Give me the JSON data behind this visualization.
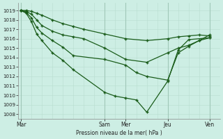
{
  "xlabel": "Pression niveau de la mer( hPa )",
  "bg_color": "#cdeee4",
  "line_color": "#1a5c1a",
  "grid_minor_color": "#b8ddd0",
  "grid_major_color": "#a0c8b8",
  "ylim": [
    1007.5,
    1019.8
  ],
  "yticks": [
    1008,
    1009,
    1010,
    1011,
    1012,
    1013,
    1014,
    1015,
    1016,
    1017,
    1018,
    1019
  ],
  "day_labels": [
    "Mar",
    "Sam",
    "Mer",
    "Jeu",
    "Ven"
  ],
  "day_x": [
    0,
    16,
    20,
    28,
    36
  ],
  "xlim": [
    -0.5,
    38
  ],
  "series_x": [
    [
      0,
      1,
      2,
      3,
      4,
      6,
      8,
      10,
      12,
      16,
      20,
      24,
      28,
      30,
      32,
      34,
      36
    ],
    [
      0,
      1,
      2,
      3,
      4,
      6,
      8,
      10,
      12,
      16,
      20,
      24,
      28,
      30,
      32,
      34,
      36
    ],
    [
      0,
      1,
      2,
      3,
      4,
      6,
      8,
      10,
      16,
      20,
      22,
      24,
      28,
      30,
      32,
      34,
      36
    ],
    [
      0,
      1,
      2,
      3,
      4,
      6,
      8,
      10,
      16,
      18,
      20,
      22,
      24,
      28,
      30,
      32,
      36
    ]
  ],
  "series_y": [
    [
      1019,
      1019,
      1018.9,
      1018.7,
      1018.5,
      1018.0,
      1017.6,
      1017.3,
      1017.0,
      1016.5,
      1016.0,
      1015.8,
      1016.0,
      1016.2,
      1016.3,
      1016.4,
      1016.3
    ],
    [
      1019,
      1018.9,
      1018.6,
      1018.0,
      1017.4,
      1016.8,
      1016.4,
      1016.2,
      1016.0,
      1015.0,
      1013.8,
      1013.5,
      1014.5,
      1015.0,
      1015.3,
      1015.8,
      1016.1
    ],
    [
      1019,
      1018.8,
      1018.2,
      1017.2,
      1016.6,
      1015.8,
      1015.1,
      1014.2,
      1013.8,
      1013.2,
      1012.4,
      1012.0,
      1011.6,
      1014.5,
      1015.2,
      1015.8,
      1016.4
    ],
    [
      1019,
      1018.7,
      1017.8,
      1016.5,
      1015.8,
      1014.5,
      1013.7,
      1012.7,
      1010.3,
      1009.9,
      1009.7,
      1009.5,
      1008.2,
      1011.5,
      1014.8,
      1015.9,
      1016.1
    ]
  ]
}
